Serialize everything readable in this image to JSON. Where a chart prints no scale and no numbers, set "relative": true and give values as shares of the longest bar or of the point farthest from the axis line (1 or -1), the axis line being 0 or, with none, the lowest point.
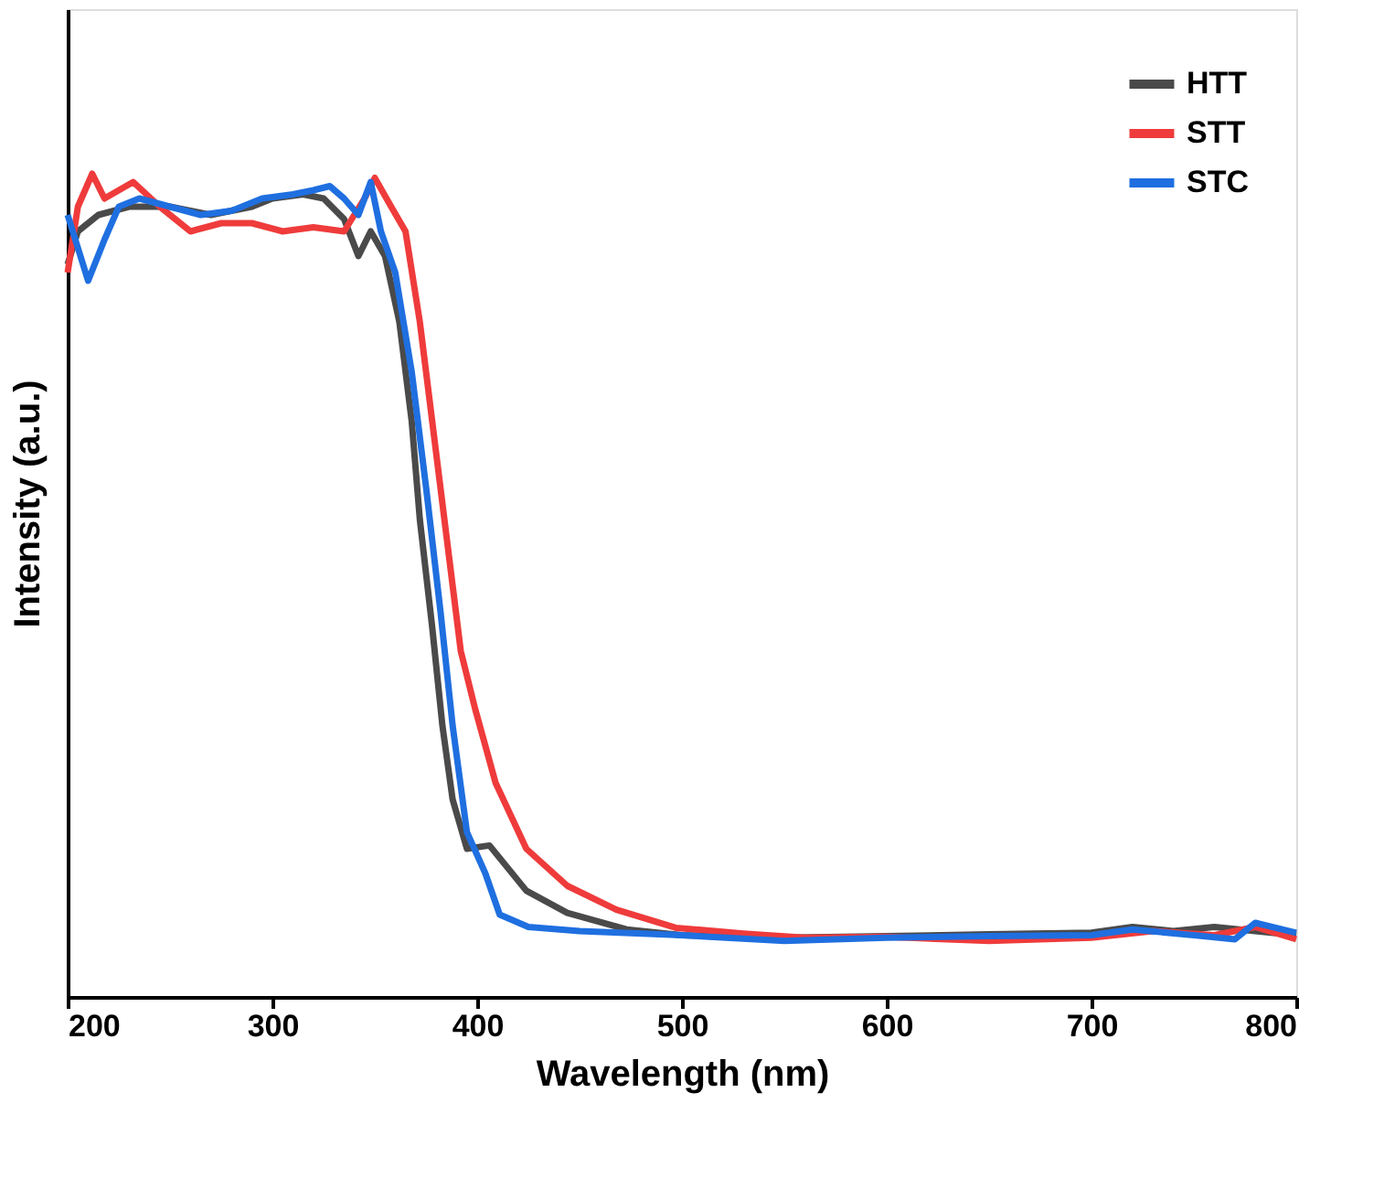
{
  "chart_data": {
    "type": "line",
    "xlabel": "Wavelength (nm)",
    "ylabel": "Intensity (a.u.)",
    "relative": true,
    "xlim": [
      200,
      800
    ],
    "xticks": [
      200,
      300,
      400,
      500,
      600,
      700,
      800
    ],
    "grid": false,
    "legend": "top right",
    "marker": "none",
    "line_style": "solid",
    "series": [
      {
        "name": "HTT",
        "color": "#4a4a4a",
        "x": [
          200,
          205,
          215,
          230,
          250,
          270,
          290,
          300,
          315,
          325,
          335,
          342,
          348,
          355,
          362,
          368,
          372,
          378,
          383,
          388,
          395,
          406,
          424,
          444,
          473,
          500,
          550,
          600,
          650,
          700,
          720,
          740,
          760,
          780,
          800
        ],
        "values": [
          0.89,
          0.93,
          0.95,
          0.96,
          0.96,
          0.95,
          0.96,
          0.97,
          0.975,
          0.97,
          0.945,
          0.9,
          0.93,
          0.9,
          0.82,
          0.7,
          0.58,
          0.45,
          0.33,
          0.24,
          0.18,
          0.184,
          0.129,
          0.102,
          0.082,
          0.075,
          0.072,
          0.074,
          0.076,
          0.078,
          0.085,
          0.08,
          0.085,
          0.08,
          0.075
        ]
      },
      {
        "name": "STT",
        "color": "#ef3b3b",
        "x": [
          200,
          205,
          212,
          218,
          225,
          232,
          245,
          260,
          275,
          290,
          305,
          320,
          335,
          345,
          350,
          358,
          365,
          372,
          378,
          385,
          392,
          399,
          409,
          424,
          444,
          468,
          497,
          530,
          560,
          600,
          650,
          700,
          730,
          760,
          780,
          800
        ],
        "values": [
          0.88,
          0.96,
          1,
          0.97,
          0.98,
          0.99,
          0.96,
          0.93,
          0.94,
          0.94,
          0.93,
          0.935,
          0.93,
          0.97,
          0.995,
          0.96,
          0.93,
          0.82,
          0.7,
          0.56,
          0.42,
          0.35,
          0.26,
          0.18,
          0.135,
          0.106,
          0.084,
          0.077,
          0.072,
          0.073,
          0.068,
          0.072,
          0.08,
          0.075,
          0.085,
          0.07
        ]
      },
      {
        "name": "STC",
        "color": "#1f6fe0",
        "x": [
          200,
          205,
          210,
          218,
          225,
          235,
          250,
          265,
          280,
          295,
          310,
          320,
          328,
          335,
          342,
          348,
          353,
          360,
          368,
          375,
          382,
          388,
          395,
          404,
          411,
          425,
          450,
          500,
          550,
          600,
          650,
          700,
          720,
          750,
          770,
          780,
          800
        ],
        "values": [
          0.95,
          0.91,
          0.87,
          0.92,
          0.96,
          0.97,
          0.96,
          0.95,
          0.955,
          0.97,
          0.975,
          0.98,
          0.985,
          0.97,
          0.95,
          0.99,
          0.93,
          0.88,
          0.76,
          0.62,
          0.47,
          0.33,
          0.2,
          0.15,
          0.1,
          0.085,
          0.08,
          0.075,
          0.068,
          0.072,
          0.074,
          0.075,
          0.082,
          0.075,
          0.07,
          0.09,
          0.078
        ]
      }
    ]
  }
}
